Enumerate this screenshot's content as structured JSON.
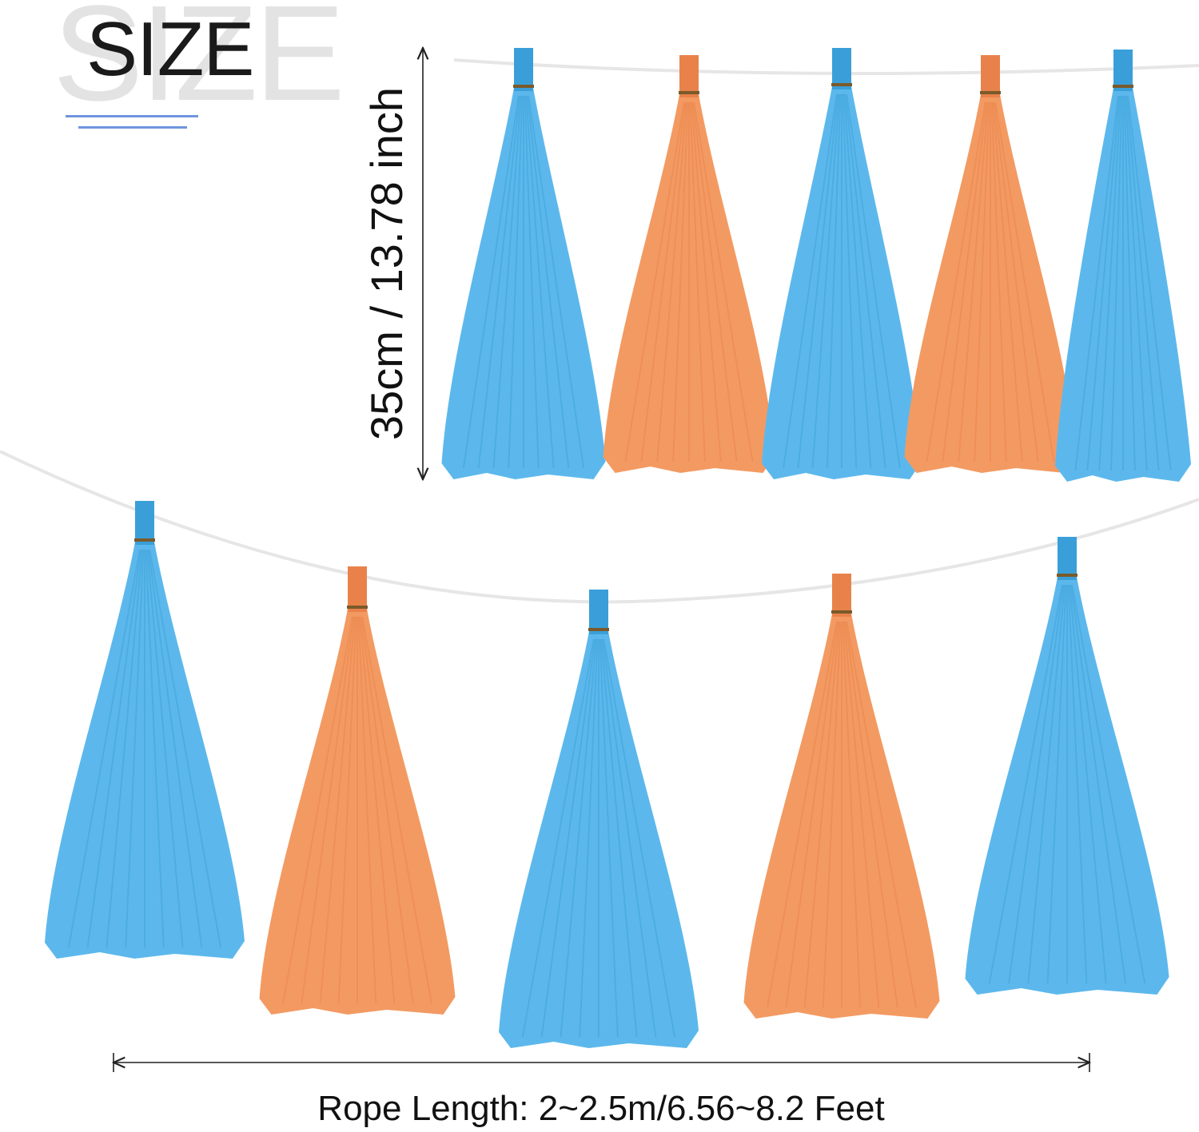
{
  "header": {
    "title": "SIZE",
    "background_word": "SIZE"
  },
  "dimensions": {
    "height_label": "35cm / 13.78 inch",
    "rope_length_label": "Rope Length: 2~2.5m/6.56~8.2 Feet"
  },
  "tassels": {
    "top_row": [
      "blue",
      "orange",
      "blue",
      "orange",
      "blue"
    ],
    "bottom_row": [
      "blue",
      "orange",
      "blue",
      "orange",
      "blue"
    ]
  },
  "colors": {
    "blue": "#5cb8ec",
    "blue_dark": "#3a9fd8",
    "orange": "#f39a62",
    "orange_dark": "#e9824a",
    "accent_line": "#6f95de",
    "string": "#e8e8e8"
  }
}
